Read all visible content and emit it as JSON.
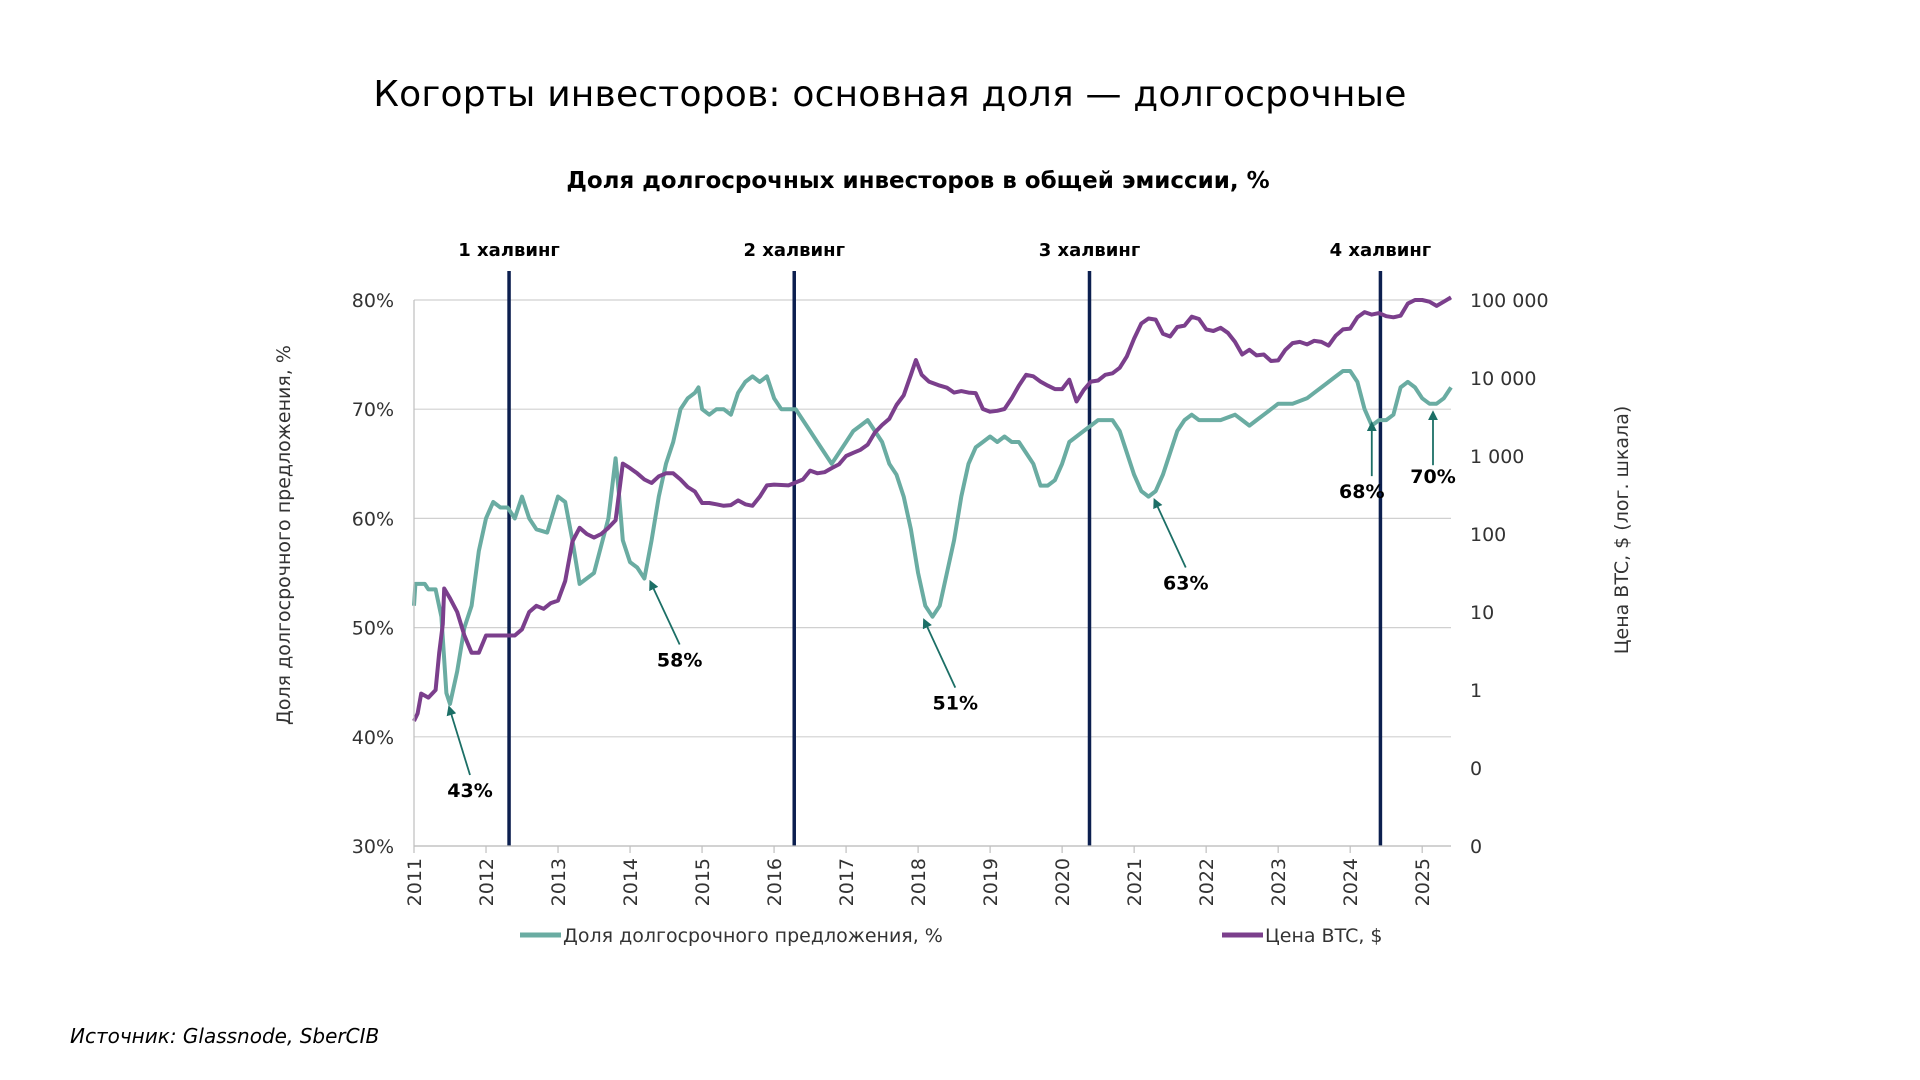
{
  "page": {
    "title": "Когорты инвесторов: основная доля — долгосрочные",
    "source": "Источник: Glassnode, SberCIB"
  },
  "chart_data": {
    "type": "line",
    "title": "Доля долгосрочных инвесторов в общей эмиссии, %",
    "ylabel": "Доля долгосрочного предложения, %",
    "y2label": "Цена BTC, $ (лог. шкала)",
    "ylim": [
      30,
      80
    ],
    "y_ticks": [
      "30%",
      "40%",
      "50%",
      "60%",
      "70%",
      "80%"
    ],
    "y2_scale": "log",
    "y2_ticks": [
      "0",
      "0",
      "1",
      "10",
      "100",
      "1 000",
      "10 000",
      "100 000"
    ],
    "xlim": [
      2011,
      2025.4
    ],
    "x_ticks": [
      "2011",
      "2012",
      "2013",
      "2014",
      "2015",
      "2016",
      "2017",
      "2018",
      "2019",
      "2020",
      "2021",
      "2022",
      "2023",
      "2024",
      "2025"
    ],
    "grid": true,
    "legend_position": "bottom",
    "colors": {
      "lth": "#6aaca2",
      "btc": "#7b3f8c",
      "halving": "#0c1f4f",
      "arrow": "#1c6f66"
    },
    "halvings": [
      {
        "label": "1 халвинг",
        "x": 2012.32
      },
      {
        "label": "2 халвинг",
        "x": 2016.28
      },
      {
        "label": "3 халвинг",
        "x": 2020.38
      },
      {
        "label": "4 халвинг",
        "x": 2024.42
      }
    ],
    "annotations": [
      {
        "text": "43%",
        "x": 2011.5,
        "y": 43
      },
      {
        "text": "58%",
        "x": 2014.3,
        "y": 54.5
      },
      {
        "text": "51%",
        "x": 2018.1,
        "y": 51
      },
      {
        "text": "63%",
        "x": 2021.3,
        "y": 62
      },
      {
        "text": "68%",
        "x": 2024.3,
        "y": 69
      },
      {
        "text": "70%",
        "x": 2025.15,
        "y": 70
      }
    ],
    "series": [
      {
        "name": "Доля долгосрочного предложения, %",
        "axis": "left",
        "points": [
          [
            2011.0,
            52
          ],
          [
            2011.02,
            54
          ],
          [
            2011.15,
            54
          ],
          [
            2011.2,
            53.5
          ],
          [
            2011.3,
            53.5
          ],
          [
            2011.38,
            51
          ],
          [
            2011.45,
            44
          ],
          [
            2011.5,
            43
          ],
          [
            2011.6,
            46
          ],
          [
            2011.7,
            50
          ],
          [
            2011.8,
            52
          ],
          [
            2011.9,
            57
          ],
          [
            2012.0,
            60
          ],
          [
            2012.1,
            61.5
          ],
          [
            2012.2,
            61
          ],
          [
            2012.3,
            61
          ],
          [
            2012.4,
            60
          ],
          [
            2012.5,
            62
          ],
          [
            2012.6,
            60
          ],
          [
            2012.7,
            59
          ],
          [
            2012.85,
            58.7
          ],
          [
            2013.0,
            62
          ],
          [
            2013.1,
            61.5
          ],
          [
            2013.2,
            58
          ],
          [
            2013.3,
            54
          ],
          [
            2013.5,
            55
          ],
          [
            2013.7,
            60
          ],
          [
            2013.8,
            65.5
          ],
          [
            2013.85,
            62
          ],
          [
            2013.9,
            58
          ],
          [
            2014.0,
            56
          ],
          [
            2014.1,
            55.5
          ],
          [
            2014.2,
            54.5
          ],
          [
            2014.3,
            58
          ],
          [
            2014.4,
            62
          ],
          [
            2014.5,
            65
          ],
          [
            2014.6,
            67
          ],
          [
            2014.7,
            70
          ],
          [
            2014.8,
            71
          ],
          [
            2014.9,
            71.5
          ],
          [
            2014.95,
            72
          ],
          [
            2015.0,
            70
          ],
          [
            2015.1,
            69.5
          ],
          [
            2015.2,
            70
          ],
          [
            2015.3,
            70
          ],
          [
            2015.4,
            69.5
          ],
          [
            2015.5,
            71.5
          ],
          [
            2015.6,
            72.5
          ],
          [
            2015.7,
            73
          ],
          [
            2015.8,
            72.5
          ],
          [
            2015.9,
            73
          ],
          [
            2016.0,
            71
          ],
          [
            2016.1,
            70
          ],
          [
            2016.2,
            70
          ],
          [
            2016.3,
            70
          ],
          [
            2016.4,
            69
          ],
          [
            2016.5,
            68
          ],
          [
            2016.6,
            67
          ],
          [
            2016.7,
            66
          ],
          [
            2016.8,
            65
          ],
          [
            2016.9,
            66
          ],
          [
            2017.0,
            67
          ],
          [
            2017.1,
            68
          ],
          [
            2017.2,
            68.5
          ],
          [
            2017.3,
            69
          ],
          [
            2017.4,
            68
          ],
          [
            2017.5,
            67
          ],
          [
            2017.6,
            65
          ],
          [
            2017.7,
            64
          ],
          [
            2017.8,
            62
          ],
          [
            2017.9,
            59
          ],
          [
            2018.0,
            55
          ],
          [
            2018.1,
            52
          ],
          [
            2018.2,
            51
          ],
          [
            2018.3,
            52
          ],
          [
            2018.4,
            55
          ],
          [
            2018.5,
            58
          ],
          [
            2018.6,
            62
          ],
          [
            2018.7,
            65
          ],
          [
            2018.8,
            66.5
          ],
          [
            2018.9,
            67
          ],
          [
            2019.0,
            67.5
          ],
          [
            2019.1,
            67
          ],
          [
            2019.2,
            67.5
          ],
          [
            2019.3,
            67
          ],
          [
            2019.4,
            67
          ],
          [
            2019.5,
            66
          ],
          [
            2019.6,
            65
          ],
          [
            2019.7,
            63
          ],
          [
            2019.8,
            63
          ],
          [
            2019.9,
            63.5
          ],
          [
            2020.0,
            65
          ],
          [
            2020.1,
            67
          ],
          [
            2020.2,
            67.5
          ],
          [
            2020.3,
            68
          ],
          [
            2020.4,
            68.5
          ],
          [
            2020.5,
            69
          ],
          [
            2020.6,
            69
          ],
          [
            2020.7,
            69
          ],
          [
            2020.8,
            68
          ],
          [
            2020.9,
            66
          ],
          [
            2021.0,
            64
          ],
          [
            2021.1,
            62.5
          ],
          [
            2021.2,
            62
          ],
          [
            2021.3,
            62.5
          ],
          [
            2021.4,
            64
          ],
          [
            2021.5,
            66
          ],
          [
            2021.6,
            68
          ],
          [
            2021.7,
            69
          ],
          [
            2021.8,
            69.5
          ],
          [
            2021.9,
            69
          ],
          [
            2022.0,
            69
          ],
          [
            2022.2,
            69
          ],
          [
            2022.4,
            69.5
          ],
          [
            2022.5,
            69
          ],
          [
            2022.6,
            68.5
          ],
          [
            2022.7,
            69
          ],
          [
            2022.8,
            69.5
          ],
          [
            2022.9,
            70
          ],
          [
            2023.0,
            70.5
          ],
          [
            2023.2,
            70.5
          ],
          [
            2023.4,
            71
          ],
          [
            2023.5,
            71.5
          ],
          [
            2023.6,
            72
          ],
          [
            2023.7,
            72.5
          ],
          [
            2023.8,
            73
          ],
          [
            2023.9,
            73.5
          ],
          [
            2024.0,
            73.5
          ],
          [
            2024.1,
            72.5
          ],
          [
            2024.2,
            70
          ],
          [
            2024.3,
            68.5
          ],
          [
            2024.4,
            69
          ],
          [
            2024.5,
            69
          ],
          [
            2024.6,
            69.5
          ],
          [
            2024.7,
            72
          ],
          [
            2024.8,
            72.5
          ],
          [
            2024.9,
            72
          ],
          [
            2025.0,
            71
          ],
          [
            2025.1,
            70.5
          ],
          [
            2025.2,
            70.5
          ],
          [
            2025.3,
            71
          ],
          [
            2025.4,
            72
          ]
        ]
      },
      {
        "name": "Цена BTC, $",
        "axis": "right",
        "points": [
          [
            2011.0,
            0.4
          ],
          [
            2011.05,
            0.5
          ],
          [
            2011.1,
            0.9
          ],
          [
            2011.2,
            0.8
          ],
          [
            2011.3,
            1
          ],
          [
            2011.35,
            3
          ],
          [
            2011.4,
            7
          ],
          [
            2011.42,
            20
          ],
          [
            2011.5,
            15
          ],
          [
            2011.6,
            10
          ],
          [
            2011.7,
            5
          ],
          [
            2011.8,
            3
          ],
          [
            2011.9,
            3
          ],
          [
            2012.0,
            5
          ],
          [
            2012.1,
            5
          ],
          [
            2012.2,
            5
          ],
          [
            2012.3,
            5
          ],
          [
            2012.4,
            5
          ],
          [
            2012.5,
            6
          ],
          [
            2012.6,
            10
          ],
          [
            2012.7,
            12
          ],
          [
            2012.8,
            11
          ],
          [
            2012.9,
            13
          ],
          [
            2013.0,
            14
          ],
          [
            2013.1,
            25
          ],
          [
            2013.2,
            80
          ],
          [
            2013.3,
            120
          ],
          [
            2013.4,
            100
          ],
          [
            2013.5,
            90
          ],
          [
            2013.6,
            100
          ],
          [
            2013.7,
            120
          ],
          [
            2013.8,
            150
          ],
          [
            2013.9,
            800
          ],
          [
            2014.0,
            700
          ],
          [
            2014.1,
            600
          ],
          [
            2014.2,
            500
          ],
          [
            2014.3,
            450
          ],
          [
            2014.4,
            550
          ],
          [
            2014.5,
            600
          ],
          [
            2014.6,
            600
          ],
          [
            2014.7,
            500
          ],
          [
            2014.8,
            400
          ],
          [
            2014.9,
            350
          ],
          [
            2015.0,
            250
          ],
          [
            2015.1,
            250
          ],
          [
            2015.2,
            240
          ],
          [
            2015.3,
            230
          ],
          [
            2015.4,
            235
          ],
          [
            2015.5,
            270
          ],
          [
            2015.6,
            240
          ],
          [
            2015.7,
            230
          ],
          [
            2015.8,
            300
          ],
          [
            2015.9,
            420
          ],
          [
            2016.0,
            430
          ],
          [
            2016.2,
            420
          ],
          [
            2016.4,
            500
          ],
          [
            2016.5,
            650
          ],
          [
            2016.6,
            600
          ],
          [
            2016.7,
            620
          ],
          [
            2016.8,
            700
          ],
          [
            2016.9,
            780
          ],
          [
            2017.0,
            1000
          ],
          [
            2017.1,
            1100
          ],
          [
            2017.2,
            1200
          ],
          [
            2017.3,
            1400
          ],
          [
            2017.4,
            2000
          ],
          [
            2017.5,
            2500
          ],
          [
            2017.6,
            3000
          ],
          [
            2017.7,
            4500
          ],
          [
            2017.8,
            6000
          ],
          [
            2017.9,
            11000
          ],
          [
            2017.97,
            17000
          ],
          [
            2018.05,
            11000
          ],
          [
            2018.15,
            9000
          ],
          [
            2018.3,
            8000
          ],
          [
            2018.4,
            7500
          ],
          [
            2018.5,
            6500
          ],
          [
            2018.6,
            6800
          ],
          [
            2018.7,
            6500
          ],
          [
            2018.8,
            6400
          ],
          [
            2018.9,
            4000
          ],
          [
            2019.0,
            3700
          ],
          [
            2019.1,
            3800
          ],
          [
            2019.2,
            4000
          ],
          [
            2019.3,
            5500
          ],
          [
            2019.4,
            8000
          ],
          [
            2019.5,
            11000
          ],
          [
            2019.6,
            10500
          ],
          [
            2019.7,
            9000
          ],
          [
            2019.8,
            8000
          ],
          [
            2019.9,
            7200
          ],
          [
            2020.0,
            7200
          ],
          [
            2020.1,
            9500
          ],
          [
            2020.2,
            5000
          ],
          [
            2020.3,
            7000
          ],
          [
            2020.4,
            9000
          ],
          [
            2020.5,
            9300
          ],
          [
            2020.6,
            11000
          ],
          [
            2020.7,
            11500
          ],
          [
            2020.8,
            13500
          ],
          [
            2020.9,
            19000
          ],
          [
            2021.0,
            32000
          ],
          [
            2021.1,
            50000
          ],
          [
            2021.2,
            58000
          ],
          [
            2021.3,
            56000
          ],
          [
            2021.4,
            37000
          ],
          [
            2021.5,
            34000
          ],
          [
            2021.6,
            45000
          ],
          [
            2021.7,
            47000
          ],
          [
            2021.8,
            61000
          ],
          [
            2021.9,
            57000
          ],
          [
            2022.0,
            42000
          ],
          [
            2022.1,
            40000
          ],
          [
            2022.2,
            44000
          ],
          [
            2022.3,
            38000
          ],
          [
            2022.4,
            29000
          ],
          [
            2022.5,
            20000
          ],
          [
            2022.6,
            23000
          ],
          [
            2022.7,
            19500
          ],
          [
            2022.8,
            20000
          ],
          [
            2022.9,
            16500
          ],
          [
            2023.0,
            16800
          ],
          [
            2023.1,
            23000
          ],
          [
            2023.2,
            28000
          ],
          [
            2023.3,
            29000
          ],
          [
            2023.4,
            27000
          ],
          [
            2023.5,
            30000
          ],
          [
            2023.6,
            29000
          ],
          [
            2023.7,
            26000
          ],
          [
            2023.8,
            35000
          ],
          [
            2023.9,
            42000
          ],
          [
            2024.0,
            43000
          ],
          [
            2024.1,
            60000
          ],
          [
            2024.2,
            70000
          ],
          [
            2024.3,
            65000
          ],
          [
            2024.4,
            68000
          ],
          [
            2024.5,
            62000
          ],
          [
            2024.6,
            60000
          ],
          [
            2024.7,
            63000
          ],
          [
            2024.8,
            90000
          ],
          [
            2024.9,
            100000
          ],
          [
            2025.0,
            100000
          ],
          [
            2025.1,
            95000
          ],
          [
            2025.2,
            84000
          ],
          [
            2025.3,
            95000
          ],
          [
            2025.4,
            108000
          ]
        ]
      }
    ]
  }
}
